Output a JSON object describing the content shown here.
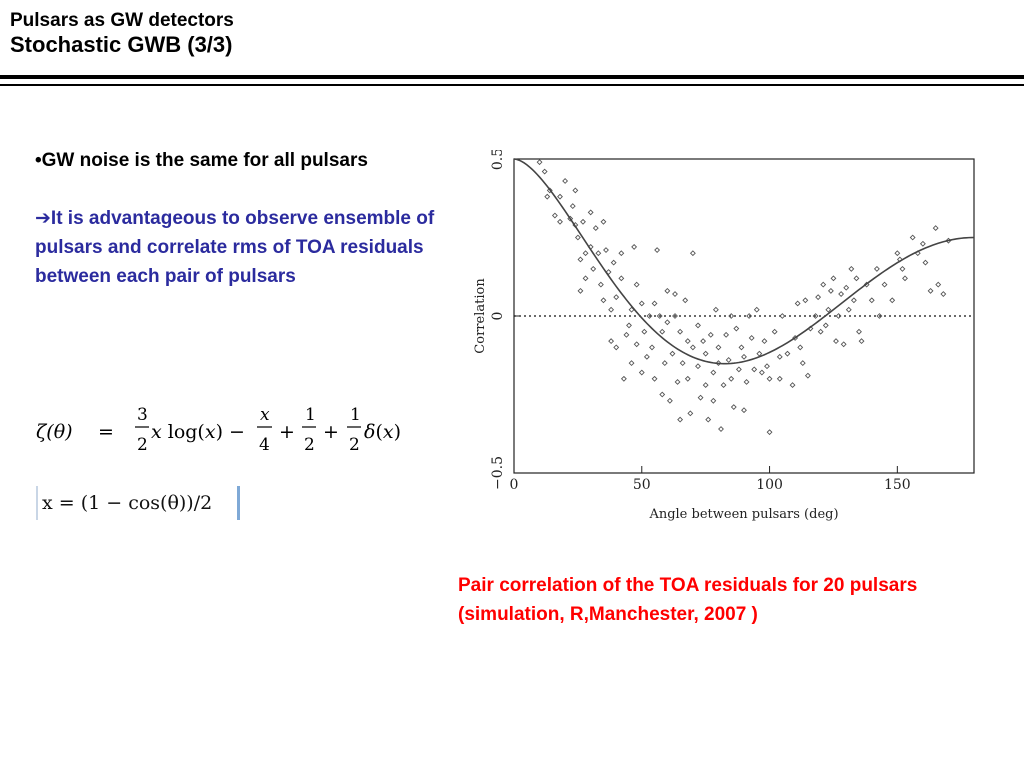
{
  "header": {
    "subtitle": "Pulsars as GW detectors",
    "title": "Stochastic GWB (3/3)"
  },
  "bullets": {
    "b1_prefix": "•",
    "b1_text": "GW noise is the same for all pulsars",
    "b2_arrow": "➔",
    "b2_text": "It is advantageous to observe ensemble of pulsars  and correlate rms of TOA residuals between each pair of pulsars"
  },
  "equations": {
    "zeta_lhs": "ζ(θ)",
    "eq_sign": "=",
    "x_def": "x = (1 − cos(θ))/2"
  },
  "caption": "Pair correlation of the TOA residuals for 20 pulsars (simulation, R,Manchester, 2007 )",
  "chart_data": {
    "type": "scatter",
    "xlabel": "Angle between pulsars (deg)",
    "ylabel": "Correlation",
    "xlim": [
      0,
      180
    ],
    "ylim": [
      -0.5,
      0.5
    ],
    "xticks": [
      0,
      50,
      100,
      150
    ],
    "yticks": [
      -0.5,
      0,
      0.5
    ],
    "xtick_labels": [
      "0",
      "50",
      "100",
      "150"
    ],
    "ytick_labels": [
      "−0.5",
      "0",
      "0.5"
    ],
    "zero_line": "dotted",
    "curve": "Hellings-Downs",
    "points": [
      [
        10,
        0.49
      ],
      [
        12,
        0.46
      ],
      [
        13,
        0.38
      ],
      [
        14,
        0.4
      ],
      [
        16,
        0.32
      ],
      [
        18,
        0.38
      ],
      [
        18,
        0.3
      ],
      [
        20,
        0.43
      ],
      [
        22,
        0.31
      ],
      [
        23,
        0.35
      ],
      [
        24,
        0.4
      ],
      [
        24,
        0.29
      ],
      [
        25,
        0.25
      ],
      [
        26,
        0.18
      ],
      [
        26,
        0.08
      ],
      [
        27,
        0.3
      ],
      [
        28,
        0.2
      ],
      [
        28,
        0.12
      ],
      [
        30,
        0.33
      ],
      [
        30,
        0.22
      ],
      [
        31,
        0.15
      ],
      [
        32,
        0.28
      ],
      [
        33,
        0.2
      ],
      [
        34,
        0.1
      ],
      [
        35,
        0.3
      ],
      [
        35,
        0.05
      ],
      [
        36,
        0.21
      ],
      [
        37,
        0.14
      ],
      [
        38,
        0.02
      ],
      [
        38,
        -0.08
      ],
      [
        39,
        0.17
      ],
      [
        40,
        0.06
      ],
      [
        40,
        -0.1
      ],
      [
        42,
        0.2
      ],
      [
        42,
        0.12
      ],
      [
        43,
        -0.2
      ],
      [
        44,
        -0.06
      ],
      [
        45,
        -0.03
      ],
      [
        46,
        0.02
      ],
      [
        46,
        -0.15
      ],
      [
        47,
        0.22
      ],
      [
        48,
        0.1
      ],
      [
        48,
        -0.09
      ],
      [
        50,
        0.04
      ],
      [
        50,
        -0.18
      ],
      [
        51,
        -0.05
      ],
      [
        52,
        -0.13
      ],
      [
        53,
        0.0
      ],
      [
        54,
        -0.1
      ],
      [
        55,
        0.04
      ],
      [
        55,
        -0.2
      ],
      [
        56,
        0.21
      ],
      [
        57,
        0.0
      ],
      [
        58,
        -0.05
      ],
      [
        58,
        -0.25
      ],
      [
        59,
        -0.15
      ],
      [
        60,
        0.08
      ],
      [
        60,
        -0.02
      ],
      [
        61,
        -0.27
      ],
      [
        62,
        -0.12
      ],
      [
        63,
        0.07
      ],
      [
        63,
        0.0
      ],
      [
        64,
        -0.21
      ],
      [
        65,
        -0.05
      ],
      [
        65,
        -0.33
      ],
      [
        66,
        -0.15
      ],
      [
        67,
        0.05
      ],
      [
        68,
        -0.08
      ],
      [
        68,
        -0.2
      ],
      [
        69,
        -0.31
      ],
      [
        70,
        -0.1
      ],
      [
        70,
        0.2
      ],
      [
        72,
        -0.03
      ],
      [
        72,
        -0.16
      ],
      [
        73,
        -0.26
      ],
      [
        74,
        -0.08
      ],
      [
        75,
        -0.12
      ],
      [
        75,
        -0.22
      ],
      [
        76,
        -0.33
      ],
      [
        77,
        -0.06
      ],
      [
        78,
        -0.18
      ],
      [
        78,
        -0.27
      ],
      [
        79,
        0.02
      ],
      [
        80,
        -0.1
      ],
      [
        80,
        -0.15
      ],
      [
        81,
        -0.36
      ],
      [
        82,
        -0.22
      ],
      [
        83,
        -0.06
      ],
      [
        84,
        -0.14
      ],
      [
        85,
        -0.2
      ],
      [
        85,
        0.0
      ],
      [
        86,
        -0.29
      ],
      [
        87,
        -0.04
      ],
      [
        88,
        -0.17
      ],
      [
        89,
        -0.1
      ],
      [
        90,
        -0.3
      ],
      [
        90,
        -0.13
      ],
      [
        91,
        -0.21
      ],
      [
        92,
        0.0
      ],
      [
        93,
        -0.07
      ],
      [
        94,
        -0.17
      ],
      [
        95,
        0.02
      ],
      [
        96,
        -0.12
      ],
      [
        97,
        -0.18
      ],
      [
        98,
        -0.08
      ],
      [
        99,
        -0.16
      ],
      [
        100,
        -0.2
      ],
      [
        100,
        -0.37
      ],
      [
        102,
        -0.05
      ],
      [
        104,
        -0.13
      ],
      [
        104,
        -0.2
      ],
      [
        105,
        0.0
      ],
      [
        107,
        -0.12
      ],
      [
        109,
        -0.22
      ],
      [
        110,
        -0.07
      ],
      [
        111,
        0.04
      ],
      [
        112,
        -0.1
      ],
      [
        113,
        -0.15
      ],
      [
        114,
        0.05
      ],
      [
        115,
        -0.19
      ],
      [
        116,
        -0.04
      ],
      [
        118,
        0.0
      ],
      [
        119,
        0.06
      ],
      [
        120,
        -0.05
      ],
      [
        121,
        0.1
      ],
      [
        122,
        -0.03
      ],
      [
        123,
        0.02
      ],
      [
        124,
        0.08
      ],
      [
        125,
        0.12
      ],
      [
        126,
        -0.08
      ],
      [
        127,
        0.0
      ],
      [
        128,
        0.07
      ],
      [
        129,
        -0.09
      ],
      [
        130,
        0.09
      ],
      [
        131,
        0.02
      ],
      [
        132,
        0.15
      ],
      [
        133,
        0.05
      ],
      [
        134,
        0.12
      ],
      [
        135,
        -0.05
      ],
      [
        136,
        -0.08
      ],
      [
        138,
        0.1
      ],
      [
        140,
        0.05
      ],
      [
        142,
        0.15
      ],
      [
        143,
        0.0
      ],
      [
        145,
        0.1
      ],
      [
        148,
        0.05
      ],
      [
        150,
        0.2
      ],
      [
        151,
        0.18
      ],
      [
        152,
        0.15
      ],
      [
        153,
        0.12
      ],
      [
        156,
        0.25
      ],
      [
        158,
        0.2
      ],
      [
        160,
        0.23
      ],
      [
        161,
        0.17
      ],
      [
        163,
        0.08
      ],
      [
        165,
        0.28
      ],
      [
        166,
        0.1
      ],
      [
        168,
        0.07
      ],
      [
        170,
        0.24
      ]
    ]
  }
}
